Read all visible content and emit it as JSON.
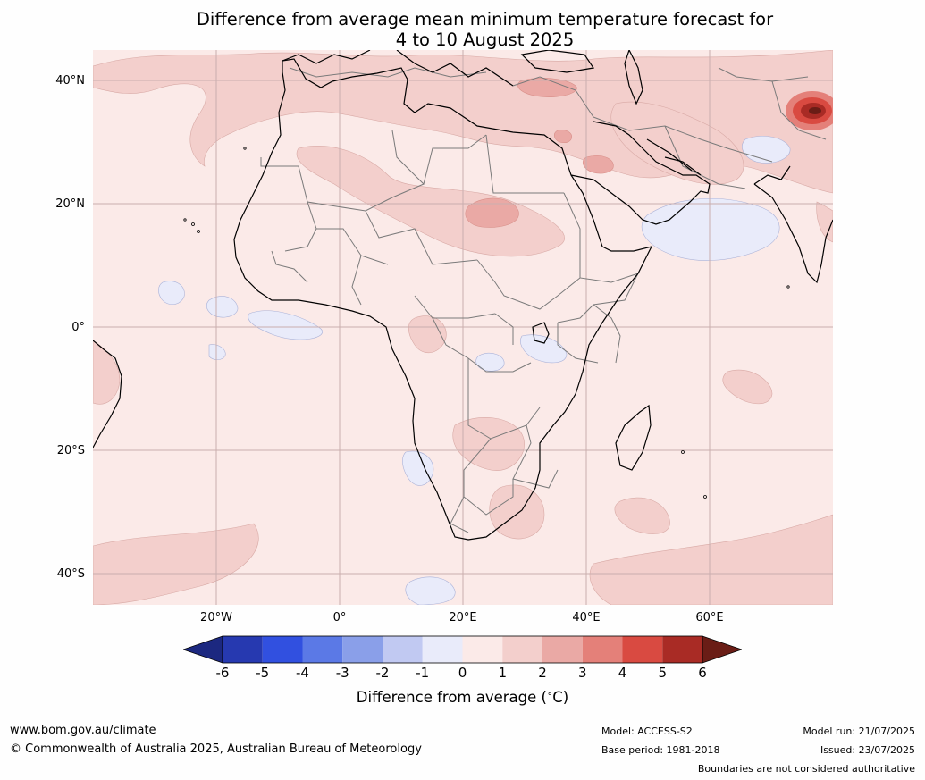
{
  "title": {
    "line1": "Difference from average mean minimum temperature forecast for",
    "line2": "4 to 10 August 2025"
  },
  "map": {
    "region": "Africa and surrounding oceans",
    "lat_labels": [
      "40°N",
      "20°N",
      "0°",
      "20°S",
      "40°S"
    ],
    "lon_labels": [
      "20°W",
      "0°",
      "20°E",
      "40°E",
      "60°E"
    ],
    "lat_range": [
      -45,
      45
    ],
    "lon_range": [
      -40,
      80
    ],
    "gridlines": true
  },
  "colorbar": {
    "ticks": [
      "-6",
      "-5",
      "-4",
      "-3",
      "-2",
      "-1",
      "0",
      "1",
      "2",
      "3",
      "4",
      "5",
      "6"
    ],
    "colors": [
      "#1c2880",
      "#2639b0",
      "#3150e0",
      "#5b79e6",
      "#8a9fe9",
      "#c1c9f2",
      "#e9ebfa",
      "#fbeae8",
      "#f3cfcc",
      "#eaa9a5",
      "#e48079",
      "#d94a41",
      "#a92b25",
      "#6a1d16"
    ],
    "label": "Difference from average (∘C)",
    "label_text": "Difference from average (",
    "label_unit": "∘",
    "label_end": "C)"
  },
  "footer": {
    "website": "www.bom.gov.au/climate",
    "copyright": "© Commonwealth of Australia 2025, Australian Bureau of Meteorology",
    "model": "Model: ACCESS-S2",
    "base_period": "Base period: 1981-2018",
    "model_run": "Model run: 21/07/2025",
    "issued": "Issued: 23/07/2025",
    "disclaimer": "Boundaries are not considered authoritative"
  }
}
